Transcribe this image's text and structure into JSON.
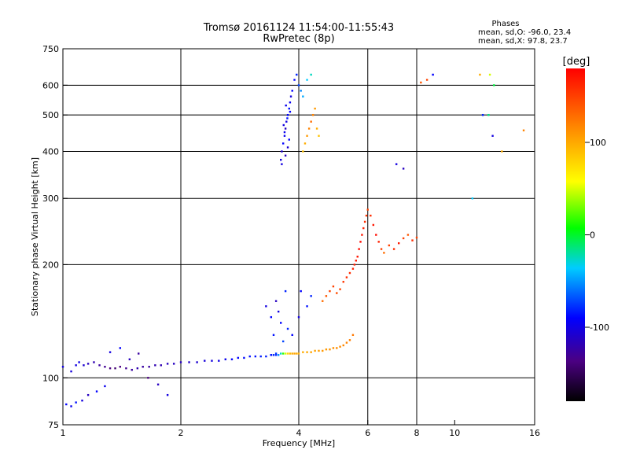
{
  "chart_data": {
    "type": "scatter",
    "title": "Tromsø 20161124 11:54:00-11:55:43",
    "subtitle": "RwPretec (8p)",
    "xlabel": "Frequency [MHz]",
    "ylabel": "Stationary phase Virtual Height [km]",
    "x_scale": "log",
    "y_scale": "log",
    "xlim": [
      1,
      16
    ],
    "ylim": [
      75,
      750
    ],
    "x_ticks": [
      1,
      2,
      4,
      6,
      8,
      10,
      16
    ],
    "y_ticks": [
      75,
      100,
      200,
      300,
      400,
      500,
      600,
      750
    ],
    "x_grid": [
      1,
      2,
      4,
      6,
      8
    ],
    "y_grid": [
      100,
      200,
      300,
      400,
      500,
      600
    ],
    "grid": true,
    "stats": {
      "header": "Phases",
      "o_line": "mean, sd,O: -96.0, 23.4",
      "x_line": "mean, sd,X:  97.8, 23.7"
    },
    "colorbar": {
      "label": "[deg]",
      "ticks": [
        100,
        0,
        -100
      ],
      "range": [
        -180,
        180
      ],
      "placement": "right"
    },
    "series": [
      {
        "x": [
          1.0,
          1.05,
          1.08,
          1.1,
          1.13,
          1.16,
          1.2,
          1.24,
          1.28,
          1.32,
          1.36,
          1.4,
          1.45,
          1.5,
          1.55,
          1.6,
          1.66,
          1.72,
          1.78,
          1.85,
          1.92,
          2.0,
          2.1,
          2.2,
          2.3,
          2.4,
          2.5,
          2.6,
          2.7,
          2.8,
          2.9,
          3.0,
          3.1,
          3.2,
          3.3,
          3.4,
          3.5
        ],
        "y": [
          107,
          104,
          108,
          110,
          108,
          109,
          110,
          108,
          107,
          106,
          106,
          107,
          106,
          105,
          106,
          107,
          107,
          108,
          108,
          109,
          109,
          110,
          110,
          110,
          111,
          111,
          111,
          112,
          112,
          113,
          113,
          114,
          114,
          114,
          114,
          115,
          115
        ],
        "phase": [
          -110,
          -112,
          -110,
          -108,
          -115,
          -120,
          -125,
          -130,
          -135,
          -140,
          -145,
          -140,
          -135,
          -130,
          -125,
          -130,
          -130,
          -125,
          -125,
          -120,
          -120,
          -120,
          -118,
          -115,
          -112,
          -110,
          -108,
          -105,
          -100,
          -100,
          -98,
          -95,
          -95,
          -92,
          -92,
          -90,
          -90
        ]
      },
      {
        "x": [
          1.02,
          1.05,
          1.08,
          1.12,
          1.16,
          1.22,
          1.28,
          1.32,
          1.4,
          1.48,
          1.56,
          1.65,
          1.75,
          1.85
        ],
        "y": [
          85,
          84,
          86,
          87,
          90,
          92,
          95,
          117,
          120,
          112,
          116,
          100,
          96,
          90
        ],
        "phase": [
          -100,
          -105,
          -95,
          -110,
          -120,
          -100,
          -105,
          -110,
          -100,
          -120,
          -130,
          -140,
          -120,
          -110
        ]
      },
      {
        "x": [
          3.4,
          3.45,
          3.5,
          3.55,
          3.6,
          3.65,
          3.7,
          3.75,
          3.8,
          3.85,
          3.9,
          3.95,
          4.0,
          4.1,
          4.2,
          4.3,
          4.4,
          4.5,
          4.6,
          4.7,
          4.8,
          4.9,
          5.0,
          5.1,
          5.2,
          5.3,
          5.4,
          5.5
        ],
        "y": [
          115,
          115,
          116,
          115,
          116,
          116,
          116,
          116,
          116,
          116,
          116,
          116,
          116,
          117,
          117,
          117,
          118,
          118,
          118,
          119,
          119,
          120,
          120,
          121,
          122,
          124,
          126,
          130
        ],
        "phase": [
          -95,
          -90,
          -85,
          -60,
          -30,
          10,
          50,
          80,
          95,
          100,
          105,
          100,
          100,
          100,
          102,
          104,
          105,
          108,
          110,
          110,
          112,
          114,
          115,
          116,
          118,
          120,
          122,
          125
        ]
      },
      {
        "x": [
          4.6,
          4.7,
          4.8,
          4.9,
          5.0,
          5.1,
          5.2,
          5.3,
          5.4,
          5.5,
          5.55,
          5.6,
          5.65,
          5.7,
          5.75,
          5.8,
          5.85,
          5.9,
          5.95,
          6.0
        ],
        "y": [
          160,
          165,
          170,
          175,
          168,
          172,
          180,
          185,
          190,
          195,
          200,
          205,
          210,
          220,
          230,
          240,
          250,
          260,
          270,
          280
        ],
        "phase": [
          130,
          140,
          150,
          150,
          145,
          150,
          155,
          160,
          160,
          165,
          165,
          170,
          170,
          175,
          175,
          170,
          165,
          160,
          155,
          150
        ]
      },
      {
        "x": [
          6.1,
          6.2,
          6.3,
          6.4,
          6.5,
          6.6,
          6.8,
          7.0,
          7.2,
          7.4,
          7.6,
          7.8,
          8.0
        ],
        "y": [
          270,
          255,
          240,
          230,
          220,
          215,
          225,
          220,
          228,
          235,
          240,
          232,
          236
        ],
        "phase": [
          160,
          170,
          175,
          165,
          150,
          130,
          150,
          160,
          170,
          150,
          140,
          160,
          150
        ]
      },
      {
        "x": [
          3.6,
          3.62,
          3.65,
          3.68,
          3.7,
          3.72,
          3.75,
          3.78,
          3.8,
          3.82,
          3.85,
          3.7,
          3.75,
          3.62,
          3.78,
          3.68,
          3.66,
          3.74,
          3.8,
          3.71
        ],
        "y": [
          380,
          400,
          420,
          440,
          460,
          480,
          500,
          520,
          540,
          560,
          580,
          390,
          410,
          370,
          430,
          450,
          470,
          490,
          510,
          530
        ],
        "phase": [
          -110,
          -115,
          -100,
          -105,
          -120,
          -110,
          -100,
          -95,
          -105,
          -110,
          -100,
          -120,
          -115,
          -110,
          -100,
          -105,
          -110,
          -95,
          -100,
          -105
        ]
      },
      {
        "x": [
          4.1,
          4.15,
          4.2,
          4.25,
          4.3,
          4.35,
          4.4,
          4.45,
          4.5
        ],
        "y": [
          400,
          420,
          440,
          460,
          480,
          500,
          520,
          460,
          440
        ],
        "phase": [
          90,
          100,
          110,
          120,
          130,
          120,
          110,
          100,
          90
        ]
      },
      {
        "x": [
          3.9,
          3.95,
          4.0,
          4.05,
          4.1,
          4.2,
          4.3
        ],
        "y": [
          620,
          640,
          600,
          580,
          560,
          620,
          640
        ],
        "phase": [
          -100,
          -90,
          -80,
          -60,
          -50,
          -40,
          -30
        ]
      },
      {
        "x": [
          7.1,
          7.4,
          8.5,
          8.2,
          8.8,
          11.6,
          12.3,
          12.5,
          11.8,
          11.1,
          12.2,
          12.6,
          13.2,
          15.0
        ],
        "y": [
          370,
          360,
          620,
          610,
          640,
          640,
          640,
          440,
          500,
          300,
          500,
          600,
          400,
          455
        ],
        "phase": [
          -110,
          -120,
          150,
          140,
          -100,
          100,
          50,
          -110,
          -90,
          -40,
          -20,
          -10,
          100,
          120
        ]
      },
      {
        "x": [
          3.55,
          3.6,
          3.5,
          3.7,
          3.4,
          3.3,
          3.45,
          3.65,
          3.75,
          3.85,
          4.0,
          4.05,
          4.2,
          4.3
        ],
        "y": [
          150,
          140,
          160,
          170,
          145,
          155,
          130,
          125,
          135,
          130,
          145,
          170,
          155,
          165
        ],
        "phase": [
          -110,
          -100,
          -120,
          -90,
          -100,
          -110,
          -95,
          -80,
          -90,
          -100,
          -110,
          -100,
          -95,
          -90
        ]
      }
    ]
  }
}
